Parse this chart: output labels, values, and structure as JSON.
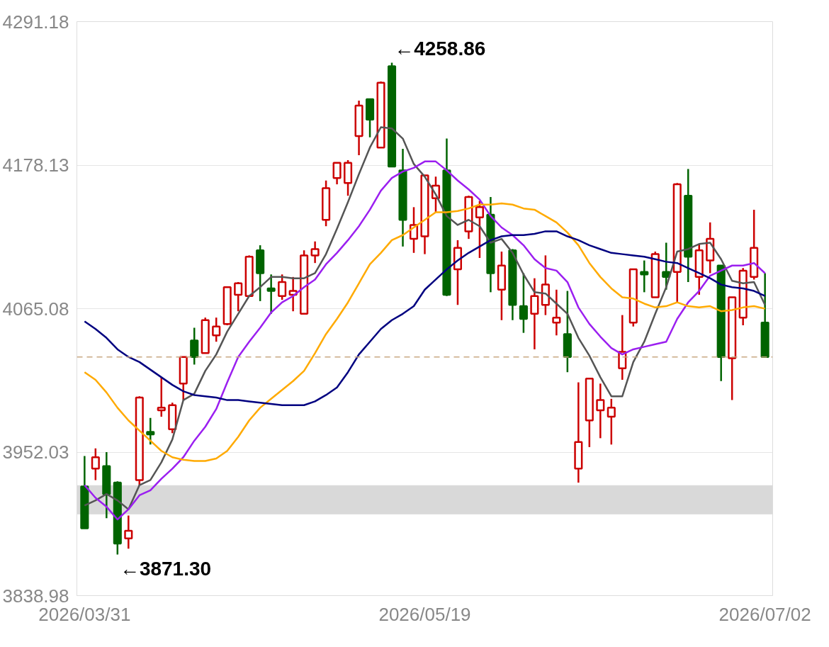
{
  "chart_data": {
    "type": "candlestick",
    "categories": [
      "2026/03/31",
      null,
      null,
      null,
      null,
      null,
      null,
      null,
      null,
      null,
      null,
      null,
      null,
      null,
      null,
      null,
      null,
      null,
      null,
      null,
      null,
      null,
      null,
      null,
      null,
      null,
      null,
      null,
      null,
      null,
      null,
      "2026/05/19",
      null,
      null,
      null,
      null,
      null,
      null,
      null,
      null,
      null,
      null,
      null,
      null,
      null,
      null,
      null,
      null,
      null,
      null,
      null,
      null,
      null,
      null,
      null,
      null,
      null,
      null,
      null,
      null,
      null,
      null,
      "2026/07/02"
    ],
    "ohlc": [
      [
        3925,
        3949,
        3892,
        3892
      ],
      [
        3939,
        3955,
        3930,
        3948
      ],
      [
        3941,
        3952,
        3900,
        3919
      ],
      [
        3928,
        3929,
        3871.3,
        3880
      ],
      [
        3884,
        3902,
        3876,
        3890
      ],
      [
        3930,
        3996,
        3926,
        3995
      ],
      [
        3968,
        3979,
        3958,
        3966
      ],
      [
        3985,
        4011,
        3980,
        3987
      ],
      [
        3970,
        3991,
        3967,
        3989
      ],
      [
        4006,
        4027,
        3993,
        4027
      ],
      [
        4040,
        4050,
        4021,
        4027
      ],
      [
        4030,
        4058,
        4030,
        4056
      ],
      [
        4044,
        4058,
        4039,
        4051
      ],
      [
        4053,
        4082,
        4052,
        4082
      ],
      [
        4076,
        4086,
        4063,
        4085
      ],
      [
        4075,
        4107,
        4075,
        4106
      ],
      [
        4111,
        4115,
        4071,
        4093
      ],
      [
        4081,
        4092,
        4061,
        4079
      ],
      [
        4075,
        4092,
        4072,
        4086
      ],
      [
        4076,
        4090,
        4063,
        4079
      ],
      [
        4061,
        4111,
        4061,
        4107
      ],
      [
        4107,
        4118,
        4101,
        4112
      ],
      [
        4135,
        4166,
        4130,
        4160
      ],
      [
        4168,
        4180,
        4163,
        4180
      ],
      [
        4164,
        4182,
        4154,
        4180
      ],
      [
        4201,
        4229,
        4186,
        4225
      ],
      [
        4230,
        4230,
        4200,
        4214
      ],
      [
        4192,
        4244,
        4192,
        4243
      ],
      [
        4256,
        4258.86,
        4177,
        4177
      ],
      [
        4174,
        4191,
        4114,
        4135
      ],
      [
        4120,
        4145,
        4109,
        4131
      ],
      [
        4122,
        4170,
        4108,
        4170
      ],
      [
        4152,
        4169,
        4141,
        4162
      ],
      [
        4174,
        4199,
        4075,
        4076
      ],
      [
        4096,
        4119,
        4068,
        4113
      ],
      [
        4126,
        4154,
        4120,
        4153
      ],
      [
        4137,
        4150,
        4105,
        4145
      ],
      [
        4139,
        4153,
        4078,
        4093
      ],
      [
        4080,
        4110,
        4056,
        4099
      ],
      [
        4111,
        4112,
        4056,
        4068
      ],
      [
        4067,
        4093,
        4046,
        4057
      ],
      [
        4061,
        4089,
        4033,
        4075
      ],
      [
        4068,
        4107,
        4060,
        4084
      ],
      [
        4054,
        4080,
        4044,
        4058
      ],
      [
        4045,
        4079,
        4015,
        4027
      ],
      [
        3939,
        4007,
        3928,
        3960
      ],
      [
        3977,
        4010,
        3956,
        4010
      ],
      [
        3985,
        4006,
        3963,
        3993
      ],
      [
        3980,
        3994,
        3958,
        3987
      ],
      [
        4018,
        4060,
        4009,
        4031
      ],
      [
        4054,
        4096,
        4051,
        4096
      ],
      [
        4094,
        4103,
        4078,
        4092
      ],
      [
        4074,
        4110,
        4074,
        4108
      ],
      [
        4094,
        4117,
        4080,
        4090
      ],
      [
        4094,
        4164,
        4070,
        4163
      ],
      [
        4154,
        4175,
        4086,
        4106
      ],
      [
        4090,
        4116,
        4076,
        4111
      ],
      [
        4103,
        4133,
        4093,
        4120
      ],
      [
        4099,
        4099,
        4008,
        4027
      ],
      [
        4026,
        4074,
        3993,
        4074
      ],
      [
        4058,
        4097,
        4052,
        4095
      ],
      [
        4090,
        4143,
        4088,
        4113
      ],
      [
        4054,
        4093,
        4027,
        4027
      ]
    ],
    "colors": [
      "#006400",
      "#cc0000",
      "#006400",
      "#006400",
      "#cc0000",
      "#cc0000",
      "#006400",
      "#cc0000",
      "#cc0000",
      "#cc0000",
      "#006400",
      "#cc0000",
      "#cc0000",
      "#cc0000",
      "#cc0000",
      "#cc0000",
      "#006400",
      "#006400",
      "#cc0000",
      "#cc0000",
      "#cc0000",
      "#cc0000",
      "#cc0000",
      "#cc0000",
      "#cc0000",
      "#cc0000",
      "#006400",
      "#cc0000",
      "#006400",
      "#006400",
      "#cc0000",
      "#cc0000",
      "#cc0000",
      "#006400",
      "#cc0000",
      "#cc0000",
      "#cc0000",
      "#006400",
      "#cc0000",
      "#006400",
      "#006400",
      "#cc0000",
      "#cc0000",
      "#cc0000",
      "#006400",
      "#cc0000",
      "#cc0000",
      "#cc0000",
      "#cc0000",
      "#cc0000",
      "#cc0000",
      "#006400",
      "#cc0000",
      "#006400",
      "#cc0000",
      "#006400",
      "#cc0000",
      "#cc0000",
      "#006400",
      "#cc0000",
      "#cc0000",
      "#cc0000",
      "#006400"
    ],
    "series": [
      {
        "type": "line",
        "color": "#555555",
        "values": [
          3910,
          3914,
          3919,
          3914,
          3907,
          3926,
          3930,
          3944,
          3962,
          3993,
          3998,
          4016,
          4029,
          4047,
          4061,
          4075,
          4082,
          4090,
          4090,
          4089,
          4089,
          4093,
          4108,
          4128,
          4149,
          4171,
          4192,
          4208,
          4207,
          4199,
          4179,
          4169,
          4155,
          4138,
          4131,
          4135,
          4130,
          4117,
          4120,
          4109,
          4092,
          4078,
          4077,
          4069,
          4061,
          4042,
          4028,
          4011,
          3996,
          3996,
          4023,
          4039,
          4061,
          4082,
          4110,
          4112,
          4116,
          4117,
          4104,
          4087,
          4085,
          4086,
          4068
        ]
      },
      {
        "type": "line",
        "color": "#9b1ff0",
        "values": [
          3926,
          3916,
          3909,
          3899,
          3907,
          3918,
          3922,
          3931,
          3939,
          3948,
          3961,
          3972,
          3986,
          4007,
          4027,
          4039,
          4050,
          4062,
          4070,
          4075,
          4082,
          4088,
          4100,
          4109,
          4119,
          4130,
          4143,
          4158,
          4168,
          4173,
          4176,
          4181,
          4181,
          4174,
          4166,
          4159,
          4151,
          4138,
          4129,
          4123,
          4115,
          4104,
          4097,
          4095,
          4086,
          4066,
          4053,
          4043,
          4034,
          4029,
          4033,
          4035,
          4037,
          4039,
          4057,
          4070,
          4079,
          4091,
          4095,
          4099,
          4099,
          4101,
          4093
        ]
      },
      {
        "type": "line",
        "color": "#ffaa00",
        "values": [
          4015,
          4009,
          3999,
          3987,
          3977,
          3969,
          3961,
          3953,
          3948,
          3946,
          3945,
          3945,
          3947,
          3953,
          3964,
          3977,
          3987,
          3994,
          4001,
          4008,
          4016,
          4030,
          4045,
          4057,
          4070,
          4085,
          4100,
          4109,
          4119,
          4123,
          4129,
          4135,
          4141,
          4141,
          4142,
          4144,
          4147,
          4147,
          4148,
          4147,
          4144,
          4143,
          4138,
          4133,
          4125,
          4115,
          4101,
          4090,
          4081,
          4074,
          4073,
          4069,
          4066,
          4067,
          4070,
          4067,
          4066,
          4067,
          4063,
          4064,
          4066,
          4067,
          4065
        ]
      },
      {
        "type": "line",
        "color": "#000080",
        "values": [
          4055,
          4049,
          4042,
          4033,
          4027,
          4023,
          4017,
          4011,
          4005,
          4000,
          3997,
          3996,
          3995,
          3993,
          3993,
          3992,
          3991,
          3990,
          3989,
          3989,
          3989,
          3992,
          3997,
          4003,
          4015,
          4029,
          4039,
          4049,
          4056,
          4061,
          4067,
          4080,
          4088,
          4096,
          4103,
          4109,
          4114,
          4119,
          4122,
          4123,
          4123,
          4124,
          4126,
          4126,
          4122,
          4119,
          4115,
          4112,
          4109,
          4108,
          4107,
          4106,
          4104,
          4102,
          4101,
          4097,
          4093,
          4089,
          4084,
          4082,
          4081,
          4079,
          4075
        ]
      }
    ],
    "ylim": [
      3838.98,
      4291.18
    ],
    "yticks": [
      3838.98,
      3952.03,
      4065.08,
      4178.13,
      4291.18
    ],
    "grid": "y",
    "ref_lines": [
      {
        "axis": "y",
        "value": 4027,
        "color": "#c8a882",
        "line_style": "dashed"
      }
    ],
    "bands": [
      {
        "axis": "y",
        "from": 3903,
        "to": 3926,
        "color": "#d9d9d9"
      }
    ],
    "annotations": [
      "←4258.86",
      "←3871.30"
    ]
  }
}
